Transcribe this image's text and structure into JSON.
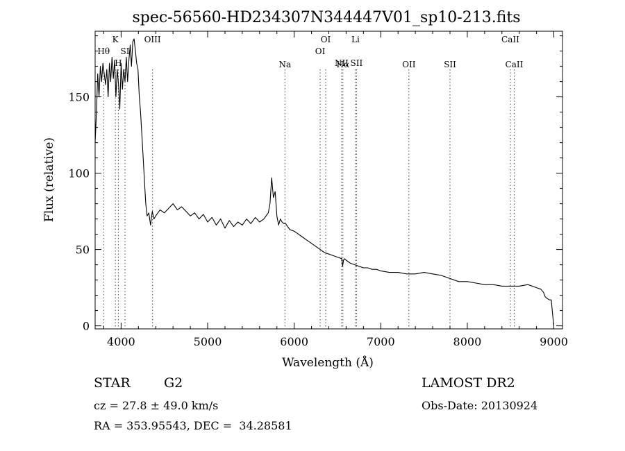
{
  "chart_data": {
    "type": "line",
    "title": "spec-56560-HD234307N344447V01_sp10-213.fits",
    "xlabel": "Wavelength (Å)",
    "ylabel": "Flux (relative)",
    "xlim": [
      3700,
      9100
    ],
    "ylim": [
      -2,
      193
    ],
    "xticks": [
      4000,
      5000,
      6000,
      7000,
      8000,
      9000
    ],
    "xtick_labels": [
      "4000",
      "5000",
      "6000",
      "7000",
      "8000",
      "9000"
    ],
    "yticks": [
      0,
      50,
      100,
      150
    ],
    "ytick_labels": [
      "0",
      "50",
      "100",
      "150"
    ],
    "grid": false,
    "series": [
      {
        "name": "",
        "x": [
          3700,
          3715,
          3730,
          3745,
          3760,
          3775,
          3790,
          3805,
          3820,
          3835,
          3850,
          3865,
          3880,
          3895,
          3910,
          3925,
          3940,
          3955,
          3970,
          3985,
          4000,
          4015,
          4030,
          4045,
          4060,
          4075,
          4090,
          4105,
          4120,
          4135,
          4150,
          4165,
          4180,
          4195,
          4210,
          4225,
          4240,
          4255,
          4270,
          4285,
          4300,
          4320,
          4340,
          4360,
          4380,
          4400,
          4450,
          4500,
          4550,
          4600,
          4650,
          4700,
          4750,
          4800,
          4850,
          4900,
          4950,
          5000,
          5050,
          5100,
          5150,
          5200,
          5250,
          5300,
          5350,
          5400,
          5450,
          5500,
          5550,
          5600,
          5650,
          5700,
          5720,
          5740,
          5760,
          5780,
          5800,
          5820,
          5840,
          5860,
          5880,
          5900,
          5950,
          6000,
          6050,
          6100,
          6150,
          6200,
          6250,
          6300,
          6350,
          6400,
          6450,
          6500,
          6550,
          6560,
          6570,
          6580,
          6600,
          6650,
          6700,
          6750,
          6800,
          6850,
          6900,
          6950,
          7000,
          7100,
          7200,
          7300,
          7400,
          7500,
          7600,
          7700,
          7800,
          7900,
          8000,
          8100,
          8200,
          8300,
          8400,
          8500,
          8600,
          8700,
          8750,
          8800,
          8850,
          8880,
          8900,
          8920,
          8950,
          8970,
          8990,
          9000
        ],
        "values": [
          120,
          140,
          165,
          150,
          170,
          160,
          172,
          165,
          158,
          168,
          150,
          172,
          160,
          176,
          162,
          174,
          150,
          168,
          158,
          142,
          172,
          155,
          168,
          160,
          176,
          160,
          174,
          184,
          170,
          186,
          188,
          180,
          172,
          168,
          150,
          140,
          125,
          110,
          95,
          80,
          72,
          74,
          66,
          75,
          70,
          72,
          76,
          74,
          77,
          80,
          76,
          78,
          75,
          72,
          74,
          70,
          73,
          68,
          71,
          66,
          70,
          64,
          69,
          65,
          68,
          66,
          70,
          67,
          71,
          68,
          70,
          74,
          80,
          97,
          84,
          88,
          72,
          66,
          70,
          68,
          67,
          67,
          63,
          62,
          60,
          58,
          56,
          54,
          52,
          50,
          48,
          47,
          46,
          45,
          44,
          39,
          43,
          44,
          43,
          41,
          40,
          39,
          38,
          38,
          37,
          37,
          36,
          35,
          35,
          34,
          34,
          35,
          34,
          33,
          31,
          29,
          29,
          28,
          27,
          27,
          26,
          26,
          26,
          27,
          26,
          25,
          24,
          22,
          19,
          18,
          17,
          17,
          5,
          0
        ]
      }
    ],
    "line_ids": [
      {
        "label": "Hθ",
        "x": 3798,
        "row": 1
      },
      {
        "label": "K",
        "x": 3934,
        "row": 0
      },
      {
        "label": "H",
        "x": 3968,
        "row": 2
      },
      {
        "label": "SI",
        "x": 4045,
        "row": 1
      },
      {
        "label": "OIII",
        "x": 4363,
        "row": 0
      },
      {
        "label": "Na",
        "x": 5893,
        "row": 3
      },
      {
        "label": "OI",
        "x": 6300,
        "row": 1
      },
      {
        "label": "OI",
        "x": 6364,
        "row": 0
      },
      {
        "label": "NII",
        "x": 6548,
        "row": 2
      },
      {
        "label": "Hα",
        "x": 6563,
        "row": 3
      },
      {
        "label": "Li",
        "x": 6708,
        "row": 0
      },
      {
        "label": "SII",
        "x": 6720,
        "row": 2
      },
      {
        "label": "OII",
        "x": 7325,
        "row": 3
      },
      {
        "label": "SII",
        "x": 7800,
        "row": 3
      },
      {
        "label": "CaII",
        "x": 8498,
        "row": 0
      },
      {
        "label": "CaII",
        "x": 8542,
        "row": 3
      }
    ]
  },
  "info": {
    "object_type": "STAR",
    "subclass": "G2",
    "survey": "LAMOST DR2",
    "redshift": "cz = 27.8 ± 49.0 km/s",
    "obs_date": "Obs-Date: 20130924",
    "coords": "RA = 353.95543, DEC =  34.28581"
  }
}
